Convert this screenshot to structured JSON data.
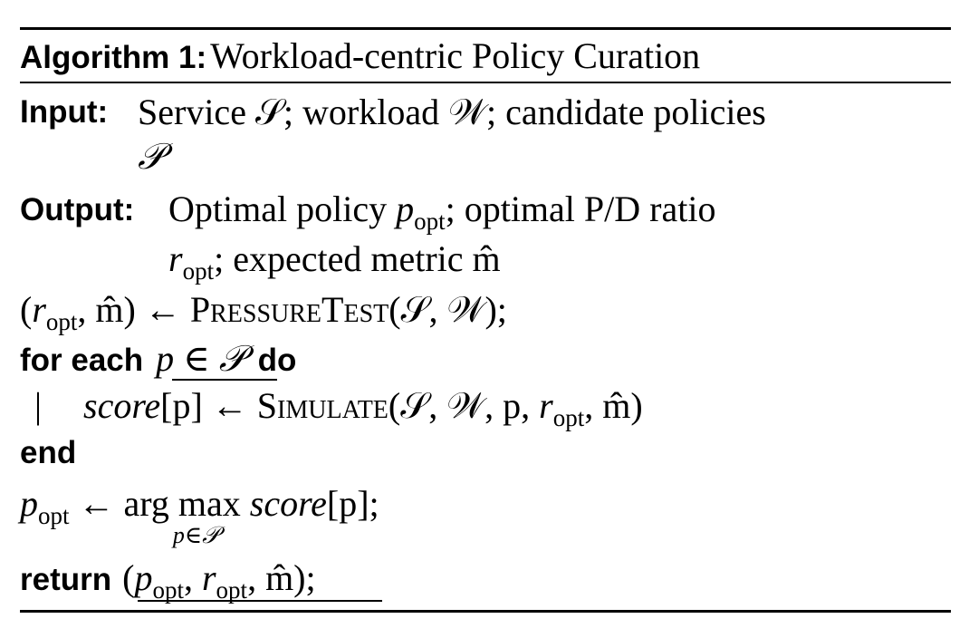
{
  "algorithm": {
    "label": "Algorithm 1:",
    "title": "Workload-centric Policy Curation"
  },
  "input": {
    "keyword": "Input:",
    "line1": "Service 𝒮; workload 𝒲; candidate policies",
    "line2": "𝒫"
  },
  "output": {
    "keyword": "Output:",
    "line1_a": "Optimal policy ",
    "line1_var": "p",
    "line1_sub": "opt",
    "line1_b": "; optimal P/D ratio",
    "line2_var": "r",
    "line2_sub": "opt",
    "line2_b": "; expected metric m̂"
  },
  "steps": {
    "pressure": {
      "lhs_open": "(",
      "r": "r",
      "r_sub": "opt",
      "lhs_rest": ", m̂) ← ",
      "func": "PressureTest",
      "args": "(𝒮, 𝒲);"
    },
    "for_each": {
      "keyword1": "for each",
      "condition": "p ∈ 𝒫",
      "keyword2": "do"
    },
    "loop_body": {
      "bar": "|",
      "lhs": "score",
      "lhs_idx": "[p] ← ",
      "func": "Simulate",
      "args_a": "(𝒮, 𝒲, p, ",
      "r": "r",
      "r_sub": "opt",
      "args_b": ", m̂)"
    },
    "end": {
      "keyword": "end"
    },
    "argmax": {
      "p": "p",
      "p_sub": "opt",
      "arrow": " ← arg ",
      "max": "max",
      "under": "p∈𝒫",
      "score": "score",
      "tail": "[p];"
    },
    "return": {
      "keyword": "return",
      "open": "(",
      "p": "p",
      "p_sub": "opt",
      "mid": ", ",
      "r": "r",
      "r_sub": "opt",
      "tail": ", m̂)",
      "semi": ";"
    }
  }
}
